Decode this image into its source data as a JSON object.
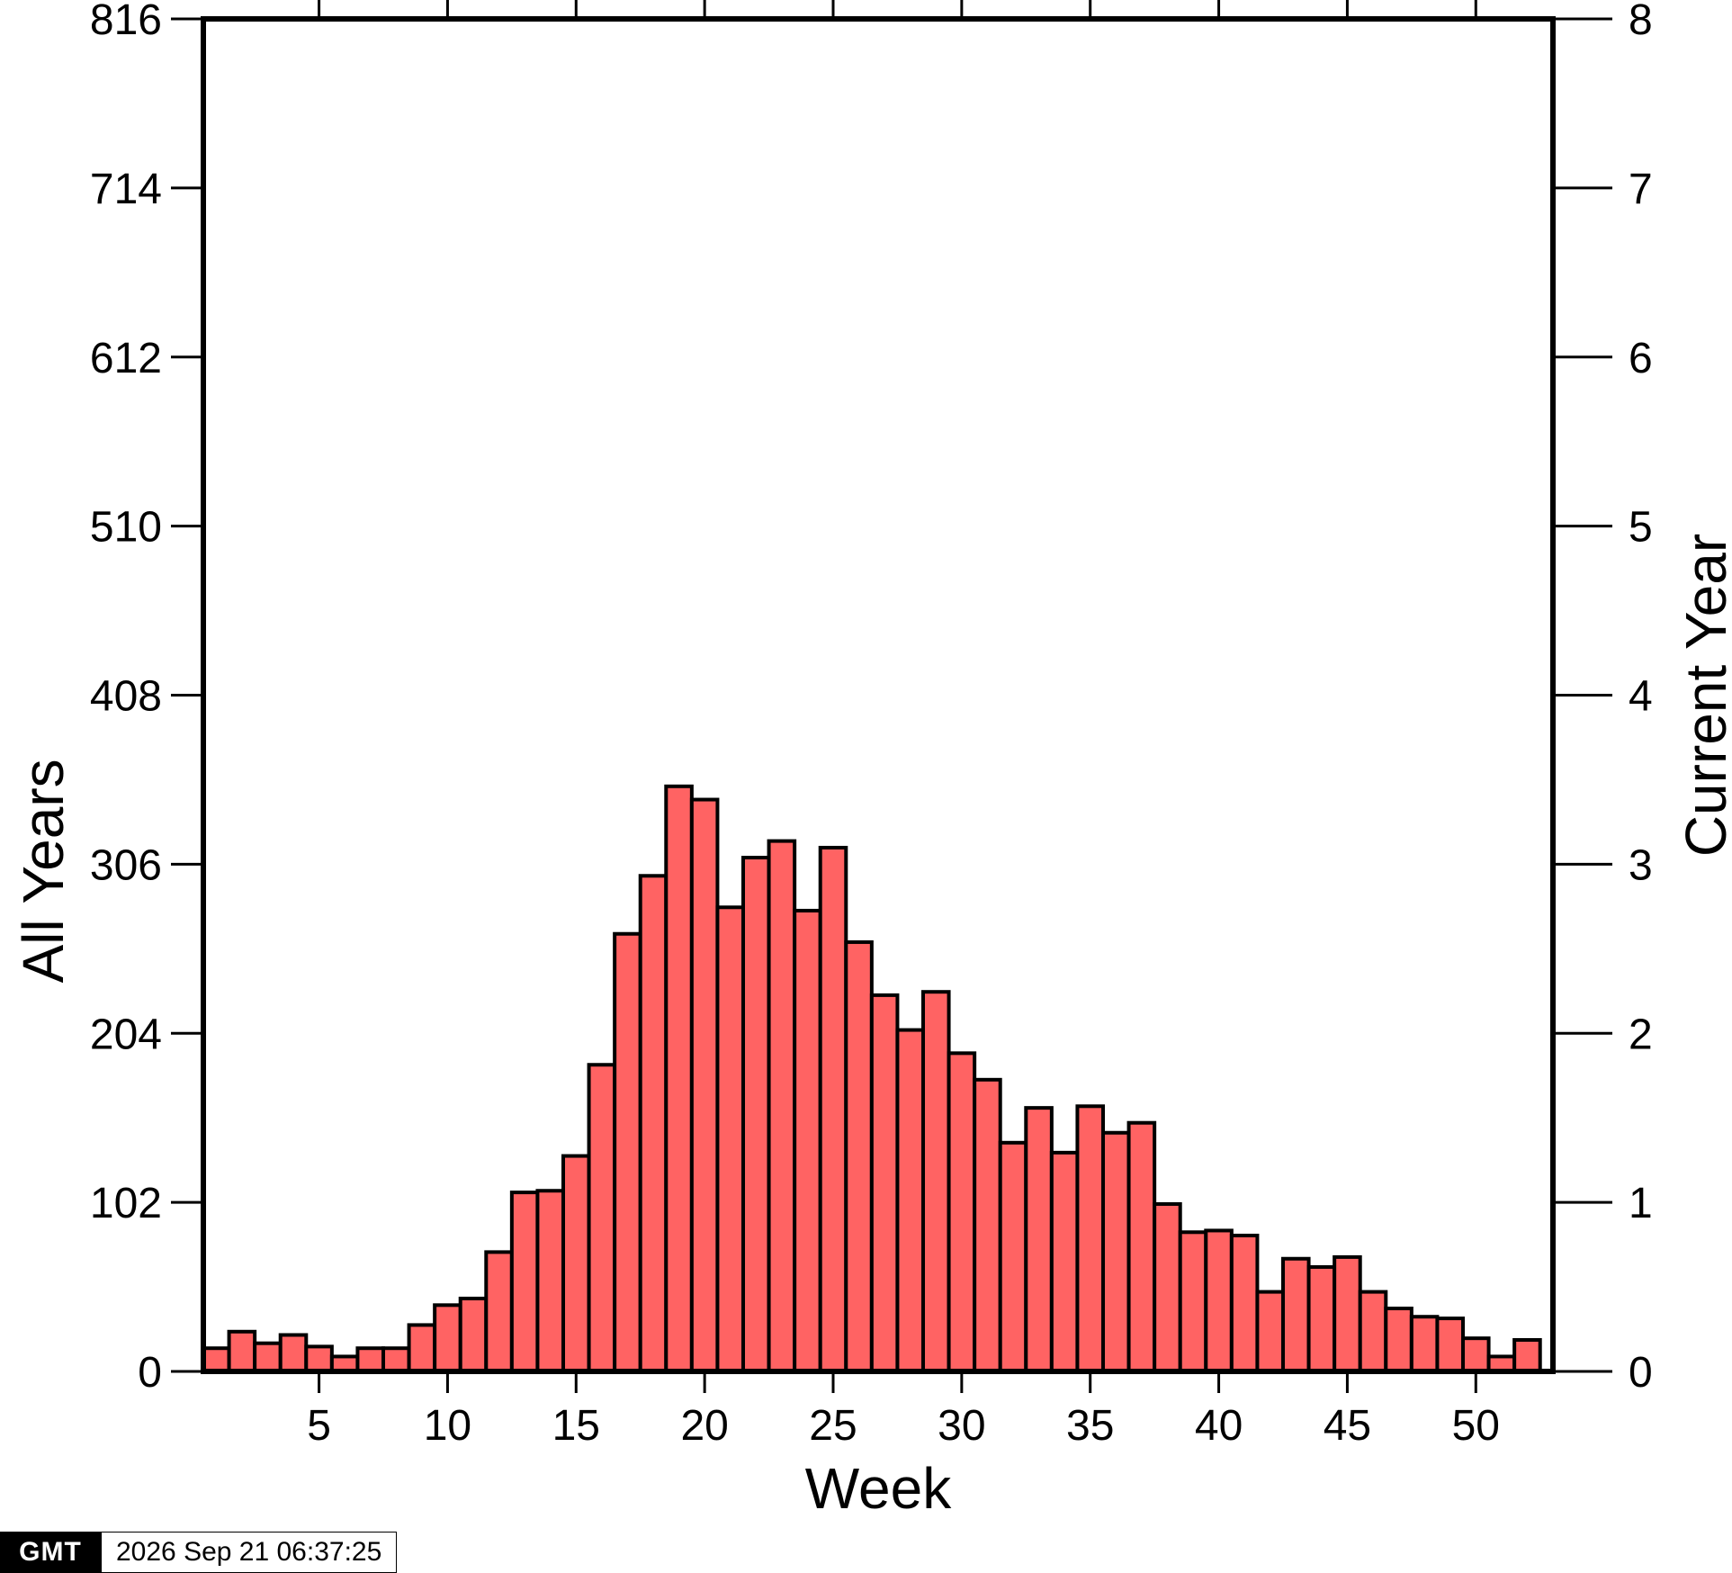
{
  "chart_data": {
    "type": "bar",
    "x": [
      1,
      2,
      3,
      4,
      5,
      6,
      7,
      8,
      9,
      10,
      11,
      12,
      13,
      14,
      15,
      16,
      17,
      18,
      19,
      20,
      21,
      22,
      23,
      24,
      25,
      26,
      27,
      28,
      29,
      30,
      31,
      32,
      33,
      34,
      35,
      36,
      37,
      38,
      39,
      40,
      41,
      42,
      43,
      44,
      45,
      46,
      47,
      48,
      49,
      50,
      51,
      52
    ],
    "series": [
      {
        "axis": "left",
        "values": [
          14,
          24,
          17,
          22,
          15,
          9,
          14,
          14,
          28,
          40,
          44,
          72,
          108,
          109,
          130,
          185,
          264,
          299,
          353,
          345,
          280,
          310,
          320,
          278,
          316,
          259,
          227,
          206,
          229,
          192,
          176,
          138,
          159,
          132,
          160,
          144,
          150,
          101,
          84,
          85,
          82,
          48,
          68,
          63,
          69,
          48,
          38,
          33,
          32,
          20,
          9,
          19
        ]
      },
      {
        "axis": "right",
        "values": [
          0,
          0,
          0,
          0,
          0,
          0,
          0,
          0,
          0,
          0,
          0,
          0,
          0,
          0,
          0,
          0,
          0,
          0,
          0,
          0,
          0,
          0,
          0,
          0,
          0,
          0,
          0,
          0,
          0,
          0,
          0,
          0,
          0,
          0,
          0,
          0,
          0,
          0,
          0,
          0,
          0,
          0,
          0,
          0,
          0,
          0,
          0,
          0,
          0,
          0,
          0,
          0
        ]
      }
    ],
    "xlabel": "Week",
    "ylabel": "All Years",
    "y2label": "Current Year",
    "xlim": [
      0.5,
      53
    ],
    "ylim": [
      0,
      816
    ],
    "y2lim": [
      0,
      8
    ],
    "xticks": [
      "5",
      "10",
      "15",
      "20",
      "25",
      "30",
      "35",
      "40",
      "45",
      "50"
    ],
    "yticks": [
      "0",
      "102",
      "204",
      "306",
      "408",
      "510",
      "612",
      "714",
      "816"
    ],
    "y2ticks": [
      "0",
      "1",
      "2",
      "3",
      "4",
      "5",
      "6",
      "7",
      "8"
    ],
    "grid": false,
    "colors": {
      "bars": "#ff6363",
      "current_year_line": "#008000",
      "outline": "#000000"
    }
  },
  "stamp": {
    "logo": "GMT",
    "timestamp": "2026 Sep 21 06:37:25"
  }
}
